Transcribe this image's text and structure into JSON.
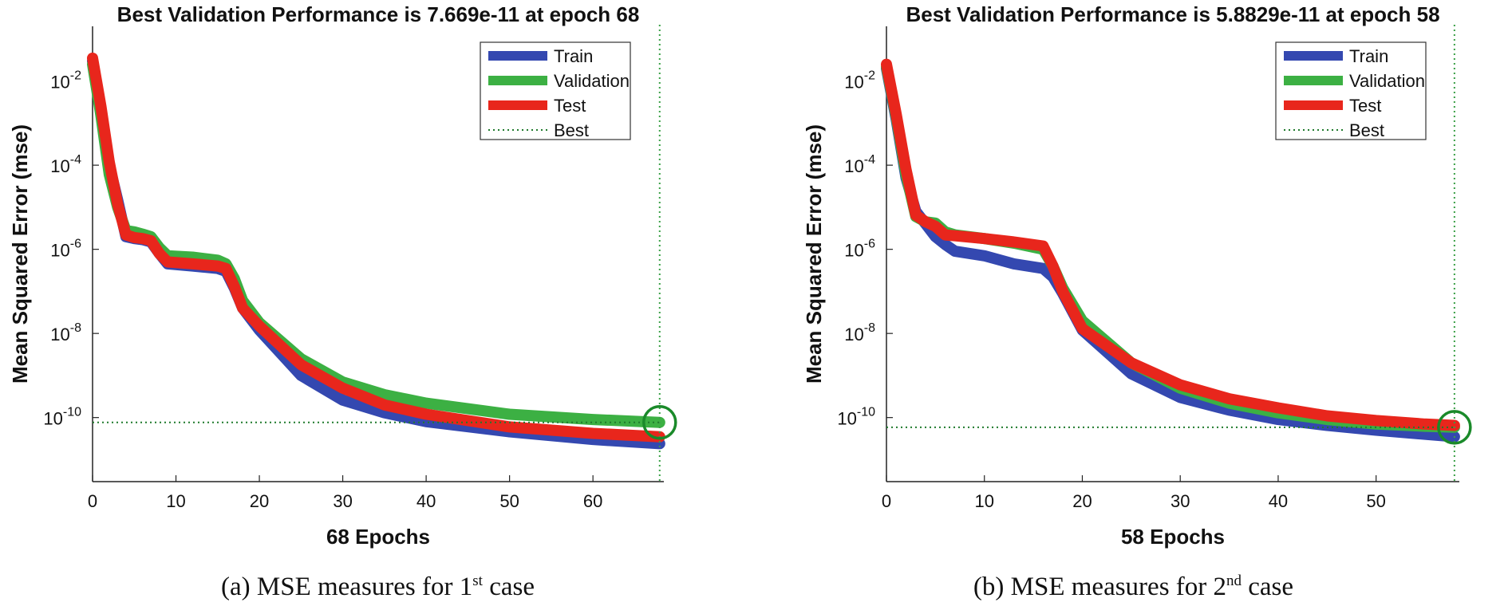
{
  "chart_data": [
    {
      "type": "line",
      "yscale": "log",
      "title": "Best Validation Performance is 7.669e-11 at epoch 68",
      "xlabel": "68 Epochs",
      "ylabel": "Mean Squared Error  (mse)",
      "xlim": [
        0,
        68.5
      ],
      "ylim": [
        3e-12,
        0.2
      ],
      "xticks": [
        0,
        10,
        20,
        30,
        40,
        50,
        60
      ],
      "yticks": [
        {
          "exp": -2
        },
        {
          "exp": -4
        },
        {
          "exp": -6
        },
        {
          "exp": -8
        },
        {
          "exp": -10
        }
      ],
      "legend": {
        "position": "top-right",
        "entries": [
          "Train",
          "Validation",
          "Test",
          "Best"
        ]
      },
      "best": {
        "epoch": 68,
        "value": 7.669e-11
      },
      "series": [
        {
          "name": "Train",
          "color": "#3448b0",
          "x": [
            0,
            1,
            2,
            3,
            4,
            5,
            6,
            7,
            8,
            9,
            12,
            15,
            16,
            17,
            18,
            20,
            25,
            30,
            35,
            40,
            50,
            60,
            68
          ],
          "y": [
            0.03,
            0.002,
            0.0001,
            1.5e-05,
            2e-06,
            1.8e-06,
            1.7e-06,
            1.5e-06,
            8e-07,
            4.5e-07,
            4e-07,
            3.5e-07,
            3e-07,
            1.2e-07,
            4e-08,
            1.2e-08,
            1e-09,
            2.6e-10,
            1.3e-10,
            8e-11,
            4.6e-11,
            3e-11,
            2.4e-11
          ]
        },
        {
          "name": "Validation",
          "color": "#3cb043",
          "x": [
            0,
            1,
            2,
            3,
            4,
            5,
            6,
            7,
            8,
            9,
            12,
            15,
            16,
            17,
            18,
            20,
            25,
            30,
            35,
            40,
            50,
            60,
            68
          ],
          "y": [
            0.025,
            0.0015,
            6e-05,
            1e-05,
            2.8e-06,
            2.6e-06,
            2.3e-06,
            2e-06,
            1.1e-06,
            7e-07,
            6.5e-07,
            5.5e-07,
            4.5e-07,
            2e-07,
            6e-08,
            1.8e-08,
            2.5e-09,
            7e-10,
            3.5e-10,
            2.2e-10,
            1.2e-10,
            9e-11,
            7.669e-11
          ]
        },
        {
          "name": "Test",
          "color": "#e8261c",
          "x": [
            0,
            1,
            2,
            3,
            4,
            5,
            6,
            7,
            8,
            9,
            12,
            15,
            16,
            17,
            18,
            20,
            25,
            30,
            35,
            40,
            50,
            60,
            68
          ],
          "y": [
            0.035,
            0.0025,
            0.00012,
            1.2e-05,
            2.2e-06,
            1.9e-06,
            1.8e-06,
            1.6e-06,
            8e-07,
            5e-07,
            4.5e-07,
            4e-07,
            3.5e-07,
            1.3e-07,
            4e-08,
            1.5e-08,
            1.8e-09,
            5e-10,
            2e-10,
            1.2e-10,
            6e-11,
            4.2e-11,
            3.5e-11
          ]
        }
      ]
    },
    {
      "type": "line",
      "yscale": "log",
      "title": "Best Validation Performance is 5.8829e-11 at epoch 58",
      "xlabel": "58 Epochs",
      "ylabel": "Mean Squared Error  (mse)",
      "xlim": [
        0,
        58.5
      ],
      "ylim": [
        3e-12,
        0.2
      ],
      "xticks": [
        0,
        10,
        20,
        30,
        40,
        50
      ],
      "yticks": [
        {
          "exp": -2
        },
        {
          "exp": -4
        },
        {
          "exp": -6
        },
        {
          "exp": -8
        },
        {
          "exp": -10
        }
      ],
      "legend": {
        "position": "top-right",
        "entries": [
          "Train",
          "Validation",
          "Test",
          "Best"
        ]
      },
      "best": {
        "epoch": 58,
        "value": 5.8829e-11
      },
      "series": [
        {
          "name": "Train",
          "color": "#3448b0",
          "x": [
            0,
            1,
            2,
            3,
            4,
            5,
            6,
            7,
            10,
            13,
            16,
            17,
            18,
            20,
            25,
            30,
            35,
            40,
            45,
            50,
            55,
            58
          ],
          "y": [
            0.02,
            0.0012,
            5e-05,
            8e-06,
            4e-06,
            2e-06,
            1.3e-06,
            9e-07,
            7e-07,
            4.5e-07,
            3.5e-07,
            2.2e-07,
            9e-08,
            1.2e-08,
            1.1e-09,
            3e-10,
            1.5e-10,
            9e-11,
            6.5e-11,
            5e-11,
            4e-11,
            3.5e-11
          ]
        },
        {
          "name": "Validation",
          "color": "#3cb043",
          "x": [
            0,
            1,
            2,
            3,
            4,
            5,
            6,
            7,
            10,
            13,
            16,
            17,
            18,
            20,
            25,
            30,
            35,
            40,
            45,
            50,
            55,
            58
          ],
          "y": [
            0.022,
            0.0014,
            6e-05,
            6e-06,
            4.5e-06,
            4.2e-06,
            2.6e-06,
            2.2e-06,
            1.8e-06,
            1.4e-06,
            1e-06,
            4e-07,
            1.2e-07,
            2e-08,
            2e-09,
            5e-10,
            2.2e-10,
            1.3e-10,
            9e-11,
            7e-11,
            6.2e-11,
            5.8829e-11
          ]
        },
        {
          "name": "Test",
          "color": "#e8261c",
          "x": [
            0,
            1,
            2,
            3,
            4,
            5,
            6,
            7,
            10,
            13,
            16,
            17,
            18,
            20,
            25,
            30,
            35,
            40,
            45,
            50,
            55,
            58
          ],
          "y": [
            0.025,
            0.0016,
            8e-05,
            6.5e-06,
            4.5e-06,
            3.5e-06,
            2.2e-06,
            2.1e-06,
            1.8e-06,
            1.5e-06,
            1.2e-06,
            4e-07,
            1e-07,
            1.3e-08,
            2e-09,
            6e-10,
            2.8e-10,
            1.7e-10,
            1.1e-10,
            8.5e-11,
            7e-11,
            6.5e-11
          ]
        }
      ]
    }
  ],
  "captions": [
    {
      "label": "(a) MSE measures for 1",
      "sup": "st",
      "tail": " case"
    },
    {
      "label": "(b) MSE measures for 2",
      "sup": "nd",
      "tail": " case"
    }
  ]
}
